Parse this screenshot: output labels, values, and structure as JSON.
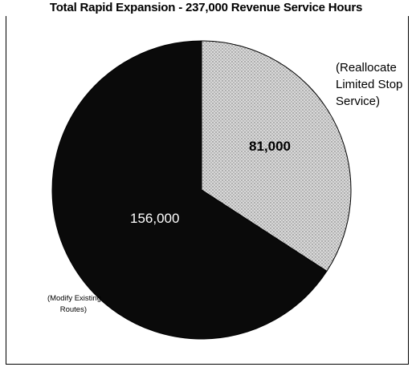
{
  "chart_data": {
    "type": "pie",
    "title": "Total Rapid Expansion - 237,000 Revenue Service Hours",
    "slices": [
      {
        "label": "156,000",
        "value": 156000,
        "note": [
          "(Modify Existing",
          "Routes)"
        ],
        "color": "#0a0a0a"
      },
      {
        "label": "81,000",
        "value": 81000,
        "note": [
          "(Reallocate",
          "Limited Stop",
          "Service)"
        ],
        "color": "#c8c8c8"
      }
    ],
    "start_angle_deg": 0,
    "direction": "clockwise",
    "legend": "none"
  }
}
